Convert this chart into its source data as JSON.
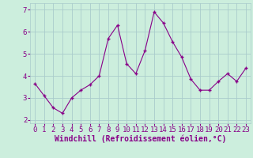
{
  "x": [
    0,
    1,
    2,
    3,
    4,
    5,
    6,
    7,
    8,
    9,
    10,
    11,
    12,
    13,
    14,
    15,
    16,
    17,
    18,
    19,
    20,
    21,
    22,
    23
  ],
  "y": [
    3.65,
    3.1,
    2.55,
    2.3,
    3.0,
    3.35,
    3.6,
    4.0,
    5.7,
    6.3,
    4.55,
    4.1,
    5.15,
    6.9,
    6.4,
    5.55,
    4.85,
    3.85,
    3.35,
    3.35,
    3.75,
    4.1,
    3.75,
    4.35
  ],
  "xlabel": "Windchill (Refroidissement éolien,°C)",
  "ylim": [
    1.85,
    7.3
  ],
  "xlim": [
    -0.5,
    23.5
  ],
  "yticks": [
    2,
    3,
    4,
    5,
    6,
    7
  ],
  "xticks": [
    0,
    1,
    2,
    3,
    4,
    5,
    6,
    7,
    8,
    9,
    10,
    11,
    12,
    13,
    14,
    15,
    16,
    17,
    18,
    19,
    20,
    21,
    22,
    23
  ],
  "line_color": "#880088",
  "marker": "+",
  "bg_color": "#cceedd",
  "grid_color": "#aacccc",
  "tick_label_fontsize": 6.5,
  "xlabel_fontsize": 7.0,
  "xlabel_color": "#880088",
  "tick_color": "#880088"
}
